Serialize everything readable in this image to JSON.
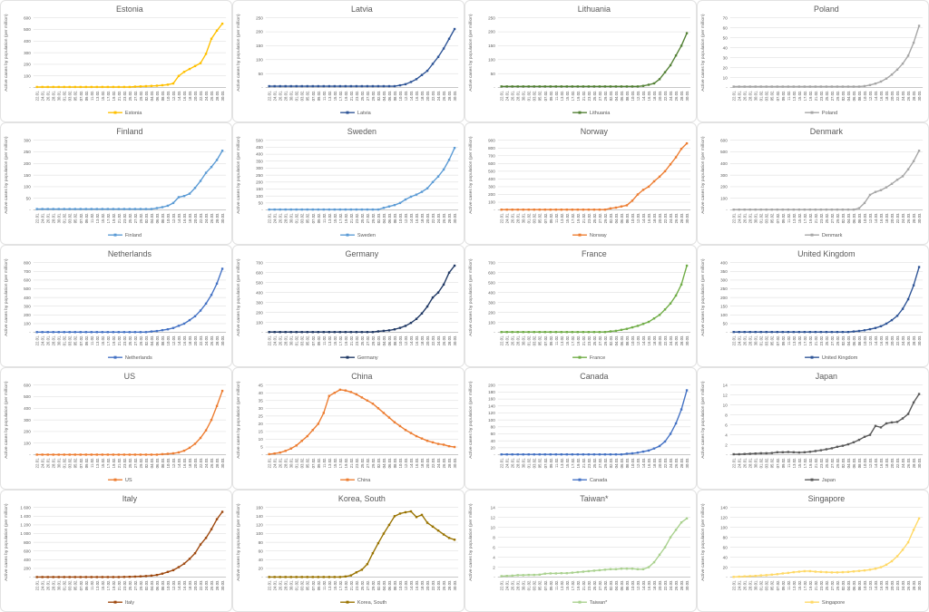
{
  "page": {
    "background": "#ffffff"
  },
  "style": {
    "title_color": "#595959",
    "axis_label_color": "#595959",
    "legend_color": "#595959",
    "gridline_color": "#d9d9d9",
    "axis_line_color": "#bfbfbf",
    "panel_border_color": "#e2e2e2"
  },
  "chart_data": {
    "type": "line",
    "ylabel": "Active cases by population (per million)",
    "zero_tick_label": "-",
    "grid": true,
    "legend_position": "bottom",
    "categories": [
      "22.01.",
      "24.01.",
      "26.01.",
      "28.01.",
      "30.01.",
      "01.02.",
      "03.02.",
      "05.02.",
      "07.02.",
      "09.02.",
      "11.02.",
      "13.02.",
      "15.02.",
      "17.02.",
      "19.02.",
      "21.02.",
      "23.02.",
      "25.02.",
      "27.02.",
      "29.02.",
      "02.03.",
      "04.03.",
      "06.03.",
      "08.03.",
      "10.03.",
      "12.03.",
      "14.03.",
      "16.03.",
      "18.03.",
      "20.03.",
      "22.03.",
      "24.03.",
      "26.03.",
      "28.03.",
      "30.03."
    ],
    "charts": [
      {
        "title": "Estonia",
        "legend": "Estonia",
        "color": "#FFC000",
        "ylim": [
          0,
          600
        ],
        "ytick_step": 100,
        "values": [
          5,
          5,
          5,
          5,
          5,
          5,
          5,
          5,
          5,
          5,
          5,
          5,
          5,
          5,
          5,
          5,
          5,
          5,
          8,
          10,
          12,
          14,
          16,
          20,
          25,
          35,
          100,
          135,
          160,
          185,
          210,
          290,
          420,
          490,
          550
        ]
      },
      {
        "title": "Latvia",
        "legend": "Latvia",
        "color": "#2F5597",
        "ylim": [
          0,
          250
        ],
        "ytick_step": 50,
        "values": [
          5,
          5,
          5,
          5,
          5,
          5,
          5,
          5,
          5,
          5,
          5,
          5,
          5,
          5,
          5,
          5,
          5,
          5,
          5,
          5,
          5,
          5,
          5,
          5,
          8,
          12,
          20,
          30,
          45,
          60,
          85,
          110,
          140,
          175,
          210
        ]
      },
      {
        "title": "Lithuania",
        "legend": "Lithuania",
        "color": "#538135",
        "ylim": [
          0,
          250
        ],
        "ytick_step": 50,
        "values": [
          4,
          4,
          4,
          4,
          4,
          4,
          4,
          4,
          4,
          4,
          4,
          4,
          4,
          4,
          4,
          4,
          4,
          4,
          4,
          4,
          4,
          4,
          4,
          4,
          4,
          4,
          6,
          10,
          15,
          30,
          55,
          80,
          115,
          150,
          195
        ]
      },
      {
        "title": "Poland",
        "legend": "Poland",
        "color": "#A6A6A6",
        "ylim": [
          0,
          70
        ],
        "ytick_step": 10,
        "values": [
          1,
          1,
          1,
          1,
          1,
          1,
          1,
          1,
          1,
          1,
          1,
          1,
          1,
          1,
          1,
          1,
          1,
          1,
          1,
          1,
          1,
          1,
          1,
          1,
          1.5,
          2.5,
          4,
          6,
          9,
          13,
          18,
          24,
          32,
          45,
          62
        ]
      },
      {
        "title": "Finland",
        "legend": "Finland",
        "color": "#5B9BD5",
        "ylim": [
          0,
          300
        ],
        "ytick_step": 50,
        "values": [
          4,
          4,
          4,
          4,
          4,
          4,
          4,
          4,
          4,
          4,
          4,
          4,
          4,
          4,
          4,
          4,
          4,
          4,
          4,
          4,
          4,
          4,
          8,
          12,
          18,
          30,
          55,
          60,
          70,
          95,
          125,
          160,
          185,
          215,
          255
        ]
      },
      {
        "title": "Sweden",
        "legend": "Sweden",
        "color": "#5B9BD5",
        "ylim": [
          0,
          500
        ],
        "ytick_step": 50,
        "values": [
          3,
          3,
          3,
          3,
          3,
          3,
          3,
          3,
          3,
          3,
          3,
          3,
          3,
          3,
          3,
          3,
          3,
          3,
          3,
          3,
          3,
          15,
          25,
          35,
          50,
          75,
          95,
          110,
          130,
          155,
          200,
          240,
          290,
          360,
          445
        ]
      },
      {
        "title": "Norway",
        "legend": "Norway",
        "color": "#ED7D31",
        "ylim": [
          0,
          900
        ],
        "ytick_step": 100,
        "values": [
          4,
          4,
          4,
          4,
          4,
          4,
          4,
          4,
          4,
          4,
          4,
          4,
          4,
          4,
          4,
          4,
          4,
          4,
          4,
          4,
          20,
          30,
          45,
          60,
          120,
          200,
          260,
          300,
          370,
          430,
          500,
          590,
          680,
          790,
          860
        ]
      },
      {
        "title": "Denmark",
        "legend": "Denmark",
        "color": "#A6A6A6",
        "ylim": [
          0,
          600
        ],
        "ytick_step": 100,
        "values": [
          3,
          3,
          3,
          3,
          3,
          3,
          3,
          3,
          3,
          3,
          3,
          3,
          3,
          3,
          3,
          3,
          3,
          3,
          3,
          3,
          3,
          3,
          3,
          15,
          60,
          130,
          155,
          170,
          195,
          225,
          260,
          290,
          350,
          420,
          510
        ]
      },
      {
        "title": "Netherlands",
        "legend": "Netherlands",
        "color": "#4472C4",
        "ylim": [
          0,
          800
        ],
        "ytick_step": 100,
        "values": [
          3,
          3,
          3,
          3,
          3,
          3,
          3,
          3,
          3,
          3,
          3,
          3,
          3,
          3,
          3,
          3,
          3,
          3,
          3,
          3,
          3,
          10,
          15,
          25,
          35,
          50,
          75,
          100,
          140,
          185,
          250,
          330,
          430,
          560,
          730
        ]
      },
      {
        "title": "Germany",
        "legend": "Germany",
        "color": "#1F3864",
        "ylim": [
          0,
          700
        ],
        "ytick_step": 100,
        "values": [
          3,
          3,
          3,
          3,
          3,
          3,
          3,
          3,
          3,
          3,
          3,
          3,
          3,
          3,
          3,
          3,
          3,
          3,
          3,
          3,
          10,
          15,
          20,
          30,
          45,
          65,
          95,
          135,
          190,
          260,
          350,
          400,
          480,
          600,
          670
        ]
      },
      {
        "title": "France",
        "legend": "France",
        "color": "#70AD47",
        "ylim": [
          0,
          700
        ],
        "ytick_step": 100,
        "values": [
          3,
          3,
          3,
          3,
          3,
          3,
          3,
          3,
          3,
          3,
          3,
          3,
          3,
          3,
          3,
          3,
          3,
          3,
          3,
          3,
          10,
          15,
          25,
          35,
          50,
          65,
          85,
          105,
          140,
          175,
          230,
          290,
          370,
          480,
          670
        ]
      },
      {
        "title": "United Kingdom",
        "legend": "United Kingdom",
        "color": "#2F5597",
        "ylim": [
          0,
          400
        ],
        "ytick_step": 50,
        "values": [
          2,
          2,
          2,
          2,
          2,
          2,
          2,
          2,
          2,
          2,
          2,
          2,
          2,
          2,
          2,
          2,
          2,
          2,
          2,
          2,
          2,
          2,
          5,
          8,
          12,
          18,
          25,
          35,
          50,
          70,
          95,
          135,
          190,
          270,
          375
        ]
      },
      {
        "title": "US",
        "legend": "US",
        "color": "#ED7D31",
        "ylim": [
          0,
          600
        ],
        "ytick_step": 100,
        "values": [
          1,
          1,
          1,
          1,
          1,
          1,
          1,
          1,
          1,
          1,
          1,
          1,
          1,
          1,
          1,
          1,
          1,
          1,
          1,
          1,
          1,
          1,
          1,
          5,
          8,
          12,
          20,
          35,
          60,
          95,
          145,
          210,
          300,
          420,
          550
        ]
      },
      {
        "title": "China",
        "legend": "China",
        "color": "#ED7D31",
        "ylim": [
          0,
          45
        ],
        "ytick_step": 5,
        "values": [
          0.4,
          0.8,
          1.4,
          2.5,
          4,
          6,
          9,
          12,
          16,
          20,
          27,
          38,
          40,
          42,
          41.5,
          40.5,
          39,
          37,
          35,
          33,
          30,
          27,
          24,
          21,
          18.5,
          16,
          14,
          12,
          10.5,
          9,
          8,
          7,
          6.5,
          5.5,
          5
        ]
      },
      {
        "title": "Canada",
        "legend": "Canada",
        "color": "#4472C4",
        "ylim": [
          0,
          200
        ],
        "ytick_step": 20,
        "values": [
          1,
          1,
          1,
          1,
          1,
          1,
          1,
          1,
          1,
          1,
          1,
          1,
          1,
          1,
          1,
          1,
          1,
          1,
          1,
          1,
          1,
          1,
          1,
          3,
          4,
          6,
          9,
          12,
          18,
          25,
          38,
          60,
          90,
          130,
          185
        ]
      },
      {
        "title": "Japan",
        "legend": "Japan",
        "color": "#595959",
        "ylim": [
          0,
          14
        ],
        "ytick_step": 2,
        "values": [
          0.1,
          0.1,
          0.15,
          0.2,
          0.25,
          0.3,
          0.3,
          0.35,
          0.5,
          0.5,
          0.55,
          0.5,
          0.45,
          0.5,
          0.6,
          0.75,
          0.9,
          1.1,
          1.3,
          1.6,
          1.8,
          2.1,
          2.5,
          3,
          3.6,
          4,
          5.8,
          5.5,
          6.3,
          6.5,
          6.6,
          7.3,
          8.2,
          10.5,
          12.2
        ]
      },
      {
        "title": "Italy",
        "legend": "Italy",
        "color": "#9E480E",
        "ylim": [
          0,
          1600
        ],
        "ytick_step": 200,
        "values": [
          2,
          2,
          2,
          2,
          2,
          2,
          2,
          2,
          2,
          2,
          2,
          2,
          2,
          2,
          2,
          2,
          5,
          8,
          12,
          18,
          25,
          35,
          50,
          80,
          120,
          160,
          230,
          310,
          420,
          550,
          750,
          900,
          1100,
          1330,
          1500
        ]
      },
      {
        "title": "Korea, South",
        "legend": "Korea, South",
        "color": "#997300",
        "ylim": [
          0,
          160
        ],
        "ytick_step": 20,
        "values": [
          0.3,
          0.3,
          0.3,
          0.3,
          0.3,
          0.3,
          0.3,
          0.3,
          0.3,
          0.3,
          0.3,
          0.3,
          0.3,
          0.3,
          1.5,
          4,
          11,
          17,
          30,
          55,
          78,
          100,
          120,
          140,
          146,
          149,
          151,
          138,
          143,
          125,
          116,
          107,
          98,
          90,
          86
        ]
      },
      {
        "title": "Taiwan*",
        "legend": "Taiwan*",
        "color": "#A9D18E",
        "ylim": [
          0,
          14
        ],
        "ytick_step": 2,
        "values": [
          0.2,
          0.25,
          0.3,
          0.4,
          0.4,
          0.45,
          0.45,
          0.5,
          0.7,
          0.75,
          0.75,
          0.8,
          0.8,
          0.9,
          1,
          1.1,
          1.2,
          1.3,
          1.4,
          1.5,
          1.6,
          1.6,
          1.7,
          1.7,
          1.7,
          1.6,
          1.6,
          2,
          3,
          4.5,
          6,
          8,
          9.5,
          11,
          11.8
        ]
      },
      {
        "title": "Singapore",
        "legend": "Singapore",
        "color": "#FFD966",
        "ylim": [
          0,
          140
        ],
        "ytick_step": 20,
        "values": [
          0.5,
          1,
          1.5,
          2,
          2.5,
          3.5,
          4,
          5,
          6,
          7.5,
          8.5,
          10,
          11,
          12,
          12,
          11,
          10.5,
          10,
          9.5,
          9.5,
          10,
          10.5,
          11.5,
          12.5,
          13.5,
          15,
          17,
          20,
          25,
          32,
          42,
          55,
          70,
          95,
          118
        ]
      }
    ]
  }
}
